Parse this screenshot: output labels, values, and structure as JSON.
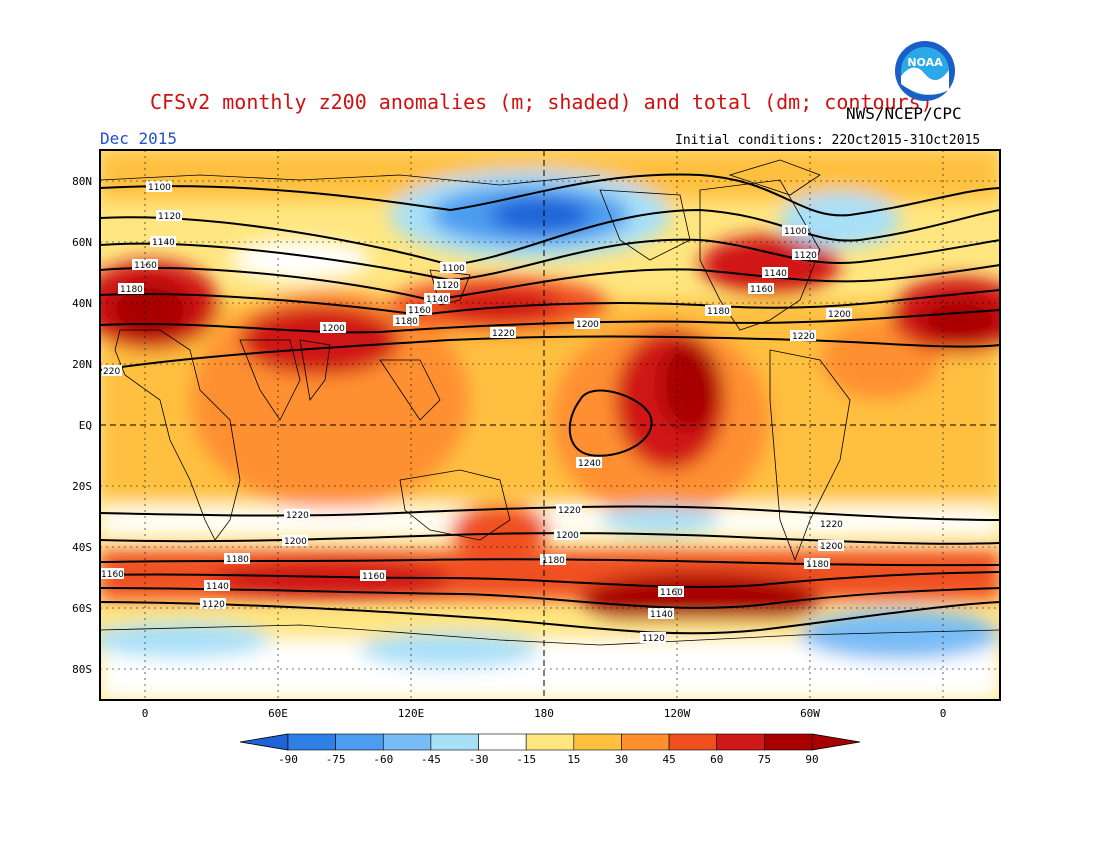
{
  "header": {
    "title": "CFSv2 monthly z200 anomalies (m; shaded) and total (dm; contours)",
    "month": "Dec 2015",
    "organization": "NWS/NCEP/CPC",
    "initial_conditions": "Initial conditions: 22Oct2015-31Oct2015",
    "logo_text": "NOAA"
  },
  "axes": {
    "lat_labels": [
      "80N",
      "60N",
      "40N",
      "20N",
      "EQ",
      "20S",
      "40S",
      "60S",
      "80S"
    ],
    "lon_labels": [
      "0",
      "60E",
      "120E",
      "180",
      "120W",
      "60W",
      "0"
    ]
  },
  "contour_labels": [
    "1100",
    "1120",
    "1140",
    "1160",
    "1180",
    "1200",
    "1220",
    "1240"
  ],
  "colorbar": {
    "ticks": [
      "-90",
      "-75",
      "-60",
      "-45",
      "-30",
      "-15",
      "15",
      "30",
      "45",
      "60",
      "75",
      "90"
    ],
    "colors": [
      "#1e64d8",
      "#2f80e6",
      "#4c9cf0",
      "#78bcf5",
      "#a8e0f8",
      "#ffffff",
      "#ffe680",
      "#ffc040",
      "#ff9030",
      "#f05020",
      "#d01818",
      "#a80000"
    ]
  }
}
